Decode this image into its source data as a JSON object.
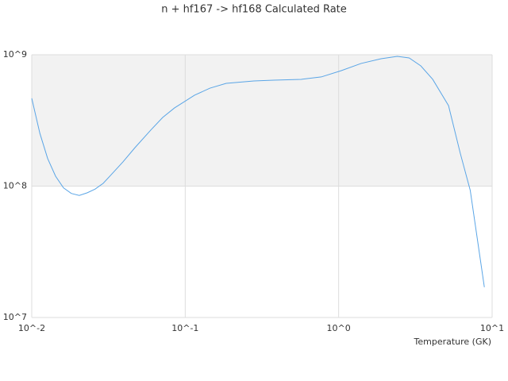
{
  "chart_data": {
    "type": "line",
    "title": "n + hf167 -> hf168 Calculated Rate",
    "x_label": "Temperature (GK)",
    "x_log": true,
    "y_log": true,
    "grid": true,
    "xlim": [
      0.01,
      10
    ],
    "ylim": [
      10000000,
      1000000000
    ],
    "xticks": [
      {
        "value": 0.01,
        "label": "10^-2"
      },
      {
        "value": 0.1,
        "label": "10^-1"
      },
      {
        "value": 1,
        "label": "10^0"
      },
      {
        "value": 10,
        "label": "10^1"
      }
    ],
    "yticks": [
      {
        "value": 10000000,
        "label": "10^7"
      },
      {
        "value": 100000000,
        "label": "10^8"
      },
      {
        "value": 1000000000,
        "label": "10^9"
      }
    ],
    "series": [
      {
        "color": "#5aa5e6",
        "x": [
          0.01,
          0.0113,
          0.0127,
          0.0143,
          0.0161,
          0.0181,
          0.0204,
          0.023,
          0.0259,
          0.0292,
          0.0329,
          0.0393,
          0.047,
          0.0596,
          0.0713,
          0.0852,
          0.115,
          0.145,
          0.185,
          0.28,
          0.377,
          0.57,
          0.77,
          1.04,
          1.4,
          1.89,
          2.41,
          2.88,
          3.43,
          4.1,
          5.2,
          6.2,
          7.2,
          8.9
        ],
        "values": [
          466000000,
          252000000,
          162000000,
          119000000,
          97000000,
          88000000,
          85000000,
          89000000,
          95000000,
          105000000,
          122000000,
          153000000,
          196000000,
          267000000,
          333000000,
          394000000,
          492000000,
          557000000,
          606000000,
          632000000,
          641000000,
          650000000,
          678000000,
          757000000,
          859000000,
          933000000,
          972000000,
          946000000,
          823000000,
          650000000,
          410000000,
          178000000,
          93000000,
          17000000
        ]
      }
    ]
  }
}
